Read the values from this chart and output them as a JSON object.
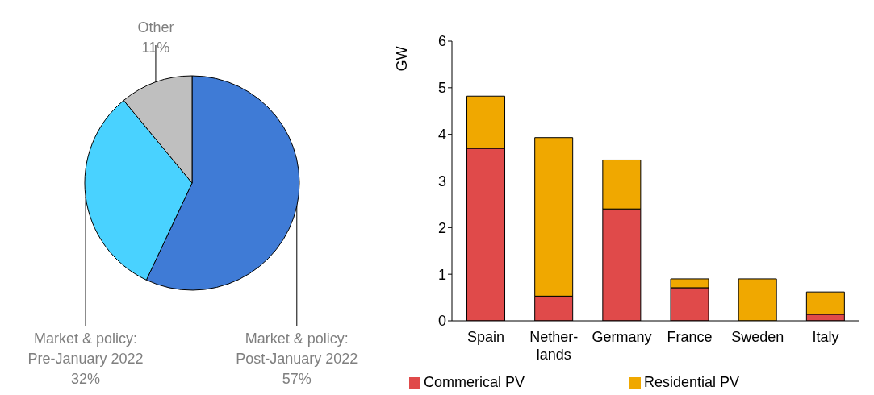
{
  "chart_data": [
    {
      "type": "pie",
      "categories": [
        "Market & policy: Post-January 2022",
        "Market & policy: Pre-January 2022",
        "Other"
      ],
      "values": [
        57,
        32,
        11
      ],
      "colors": [
        "#3f7bd6",
        "#49d2ff",
        "#bfbfbf"
      ],
      "value_labels": [
        "57%",
        "32%",
        "11%"
      ]
    },
    {
      "type": "bar",
      "stacked": true,
      "ylabel": "GW",
      "categories": [
        "Spain",
        "Nether-lands",
        "Germany",
        "France",
        "Sweden",
        "Italy"
      ],
      "ylim": [
        0,
        6
      ],
      "yticks": [
        0,
        1,
        2,
        3,
        4,
        5,
        6
      ],
      "grid": false,
      "legend": "bottom",
      "series": [
        {
          "name": "Commerical PV",
          "color": "#e04a4a",
          "values": [
            3.7,
            0.53,
            2.4,
            0.71,
            0,
            0.14
          ]
        },
        {
          "name": "Residential PV",
          "color": "#f0a800",
          "values": [
            1.12,
            3.4,
            1.05,
            0.19,
            0.9,
            0.48
          ]
        }
      ]
    }
  ]
}
